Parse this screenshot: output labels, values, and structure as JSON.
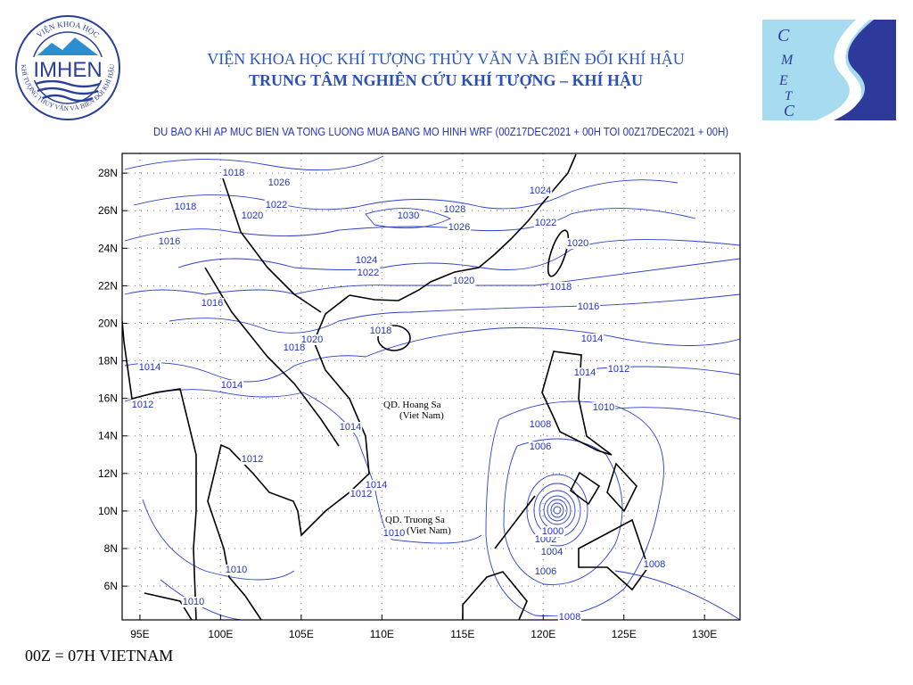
{
  "header": {
    "institute": "VIỆN KHOA HỌC KHÍ TƯỢNG THỦY VĂN VÀ BIẾN ĐỔI KHÍ HẬU",
    "center": "TRUNG TÂM NGHIÊN CỨU KHÍ TƯỢNG – KHÍ HẬU",
    "logo_left": {
      "name": "IMHEN",
      "ring_top": "VIỆN KHOA HỌC",
      "ring_bottom": "KHÍ TƯỢNG THỦY VĂN VÀ BIẾN ĐỔI KHÍ HẬU"
    },
    "logo_right": {
      "letters": [
        "C",
        "M",
        "E",
        "T",
        "C"
      ]
    }
  },
  "map": {
    "title": "DU BAO KHI AP MUC BIEN VA TONG LUONG MUA BANG MO HINH WRF (00Z17DEC2021 + 00H TOI 00Z17DEC2021 + 00H)",
    "xlim": [
      93.9,
      132.2
    ],
    "ylim": [
      4.2,
      29.05
    ],
    "xticks": [
      {
        "value": 95,
        "label": "95E"
      },
      {
        "value": 100,
        "label": "100E"
      },
      {
        "value": 105,
        "label": "105E"
      },
      {
        "value": 110,
        "label": "110E"
      },
      {
        "value": 115,
        "label": "115E"
      },
      {
        "value": 120,
        "label": "120E"
      },
      {
        "value": 125,
        "label": "125E"
      },
      {
        "value": 130,
        "label": "130E"
      }
    ],
    "yticks": [
      {
        "value": 6,
        "label": "6N"
      },
      {
        "value": 8,
        "label": "8N"
      },
      {
        "value": 10,
        "label": "10N"
      },
      {
        "value": 12,
        "label": "12N"
      },
      {
        "value": 14,
        "label": "14N"
      },
      {
        "value": 16,
        "label": "16N"
      },
      {
        "value": 18,
        "label": "18N"
      },
      {
        "value": 20,
        "label": "20N"
      },
      {
        "value": 22,
        "label": "22N"
      },
      {
        "value": 24,
        "label": "24N"
      },
      {
        "value": 26,
        "label": "26N"
      },
      {
        "value": 28,
        "label": "28N"
      }
    ],
    "grid": true,
    "isobar_labels": [
      1018,
      1026,
      1018,
      1020,
      1022,
      1030,
      1028,
      1026,
      1024,
      1022,
      1020,
      1016,
      1024,
      1022,
      1020,
      1018,
      1016,
      1016,
      1020,
      1018,
      1018,
      1014,
      1014,
      1014,
      1012,
      1014,
      1012,
      1010,
      1008,
      1006,
      1014,
      1012,
      1014,
      1012,
      1010,
      1002,
      1000,
      1004,
      1006,
      1010,
      1008,
      1010,
      1008
    ],
    "places": [
      "QD. Hoang Sa",
      "(Viet Nam)",
      "QD. Truong Sa",
      "(Viet Nam)"
    ]
  },
  "footer": "00Z = 07H VIETNAM"
}
